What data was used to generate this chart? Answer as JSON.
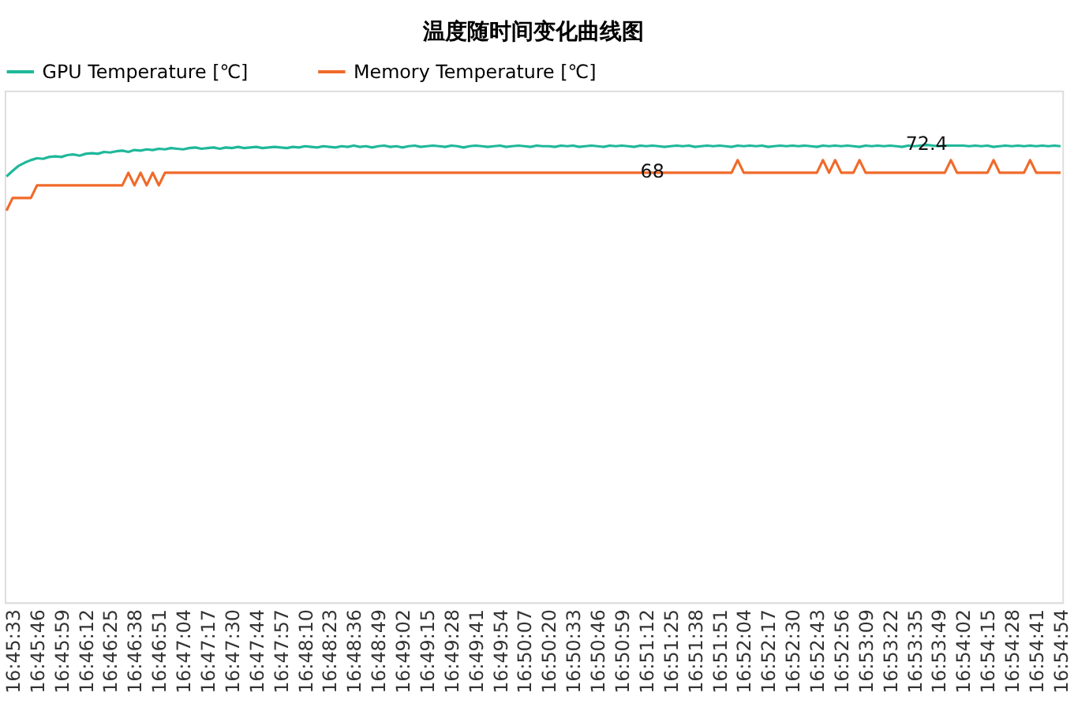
{
  "chart_data": {
    "type": "line",
    "title": "温度随时间变化曲线图",
    "categories": [
      null,
      "16:45:33",
      null,
      null,
      null,
      "16:45:46",
      null,
      null,
      null,
      "16:45:59",
      null,
      null,
      null,
      "16:46:12",
      null,
      null,
      null,
      "16:46:25",
      null,
      null,
      null,
      "16:46:38",
      null,
      null,
      null,
      "16:46:51",
      null,
      null,
      null,
      "16:47:04",
      null,
      null,
      null,
      "16:47:17",
      null,
      null,
      null,
      "16:47:30",
      null,
      null,
      null,
      "16:47:44",
      null,
      null,
      null,
      "16:47:57",
      null,
      null,
      null,
      "16:48:10",
      null,
      null,
      null,
      "16:48:23",
      null,
      null,
      null,
      "16:48:36",
      null,
      null,
      null,
      "16:48:49",
      null,
      null,
      null,
      "16:49:02",
      null,
      null,
      null,
      "16:49:15",
      null,
      null,
      null,
      "16:49:28",
      null,
      null,
      null,
      "16:49:41",
      null,
      null,
      null,
      "16:49:54",
      null,
      null,
      null,
      "16:50:07",
      null,
      null,
      null,
      "16:50:20",
      null,
      null,
      null,
      "16:50:33",
      null,
      null,
      null,
      "16:50:46",
      null,
      null,
      null,
      "16:50:59",
      null,
      null,
      null,
      "16:51:12",
      null,
      null,
      null,
      "16:51:25",
      null,
      null,
      null,
      "16:51:38",
      null,
      null,
      null,
      "16:51:51",
      null,
      null,
      null,
      "16:52:04",
      null,
      null,
      null,
      "16:52:17",
      null,
      null,
      null,
      "16:52:30",
      null,
      null,
      null,
      "16:52:43",
      null,
      null,
      null,
      "16:52:56",
      null,
      null,
      null,
      "16:53:09",
      null,
      null,
      null,
      "16:53:22",
      null,
      null,
      null,
      "16:53:35",
      null,
      null,
      null,
      "16:53:49",
      null,
      null,
      null,
      "16:54:02",
      null,
      null,
      null,
      "16:54:15",
      null,
      null,
      null,
      "16:54:28",
      null,
      null,
      null,
      "16:54:41",
      null,
      null,
      null,
      "16:54:54"
    ],
    "series": [
      {
        "name": "GPU Temperature [℃]",
        "color": "#1fb89a",
        "values": [
          67.4,
          68.3,
          69.1,
          69.6,
          70.0,
          70.3,
          70.2,
          70.5,
          70.6,
          70.5,
          70.8,
          70.9,
          70.7,
          71.0,
          71.1,
          71.0,
          71.3,
          71.2,
          71.4,
          71.5,
          71.3,
          71.6,
          71.5,
          71.7,
          71.6,
          71.8,
          71.7,
          71.9,
          71.8,
          71.7,
          71.9,
          72.0,
          71.8,
          71.9,
          72.0,
          71.8,
          72.0,
          71.9,
          72.1,
          71.9,
          72.0,
          72.1,
          71.9,
          72.0,
          72.1,
          72.0,
          71.9,
          72.1,
          72.0,
          72.2,
          72.1,
          72.0,
          72.2,
          72.1,
          72.0,
          72.2,
          72.1,
          72.3,
          72.1,
          72.2,
          72.0,
          72.2,
          72.3,
          72.1,
          72.2,
          72.0,
          72.2,
          72.3,
          72.1,
          72.2,
          72.3,
          72.2,
          72.1,
          72.3,
          72.2,
          72.0,
          72.2,
          72.3,
          72.2,
          72.1,
          72.2,
          72.3,
          72.1,
          72.2,
          72.3,
          72.2,
          72.1,
          72.3,
          72.2,
          72.2,
          72.1,
          72.3,
          72.2,
          72.3,
          72.1,
          72.2,
          72.3,
          72.2,
          72.1,
          72.3,
          72.2,
          72.3,
          72.2,
          72.1,
          72.3,
          72.2,
          72.3,
          72.2,
          72.1,
          72.2,
          72.3,
          72.2,
          72.3,
          72.1,
          72.2,
          72.3,
          72.2,
          72.3,
          72.2,
          72.1,
          72.3,
          72.2,
          72.3,
          72.2,
          72.3,
          72.1,
          72.2,
          72.3,
          72.2,
          72.3,
          72.2,
          72.3,
          72.2,
          72.1,
          72.3,
          72.2,
          72.3,
          72.2,
          72.3,
          72.2,
          72.1,
          72.3,
          72.2,
          72.3,
          72.2,
          72.3,
          72.2,
          72.1,
          72.3,
          72.2,
          72.3,
          72.4,
          72.3,
          72.2,
          72.3,
          72.3,
          72.3,
          72.3,
          72.2,
          72.3,
          72.2,
          72.3,
          72.1,
          72.2,
          72.3,
          72.2,
          72.3,
          72.2,
          72.3,
          72.2,
          72.3,
          72.2,
          72.3,
          72.2
        ],
        "value_labels": [
          null,
          null,
          null,
          null,
          null,
          null,
          null,
          null,
          null,
          null,
          null,
          null,
          null,
          null,
          null,
          null,
          null,
          null,
          null,
          null,
          null,
          null,
          null,
          null,
          null,
          null,
          null,
          null,
          null,
          null,
          null,
          null,
          null,
          null,
          null,
          null,
          null,
          null,
          null,
          null,
          null,
          null,
          null,
          null,
          null,
          null,
          null,
          null,
          null,
          null,
          null,
          null,
          null,
          null,
          null,
          null,
          null,
          null,
          null,
          null,
          null,
          null,
          null,
          null,
          null,
          null,
          null,
          null,
          null,
          null,
          null,
          null,
          null,
          null,
          null,
          null,
          null,
          null,
          null,
          null,
          null,
          null,
          null,
          null,
          null,
          null,
          null,
          null,
          null,
          null,
          null,
          null,
          null,
          null,
          null,
          null,
          null,
          null,
          null,
          null,
          null,
          null,
          null,
          null,
          null,
          null,
          null,
          null,
          null,
          null,
          null,
          null,
          null,
          null,
          null,
          null,
          null,
          null,
          null,
          null,
          null,
          null,
          null,
          null,
          null,
          null,
          null,
          null,
          null,
          null,
          null,
          null,
          null,
          null,
          null,
          null,
          null,
          null,
          null,
          null,
          null,
          null,
          null,
          null,
          null,
          null,
          null,
          null,
          null,
          null,
          null,
          "72.4",
          null,
          null,
          null,
          null,
          null,
          null,
          null,
          null,
          null,
          null,
          null,
          null,
          null,
          null,
          null,
          null,
          null,
          null,
          null,
          null,
          null,
          null
        ]
      },
      {
        "name": "Memory Temperature [℃]",
        "color": "#f06a2a",
        "values": [
          62,
          64,
          64,
          64,
          64,
          66,
          66,
          66,
          66,
          66,
          66,
          66,
          66,
          66,
          66,
          66,
          66,
          66,
          66,
          66,
          68,
          66,
          68,
          66,
          68,
          66,
          68,
          68,
          68,
          68,
          68,
          68,
          68,
          68,
          68,
          68,
          68,
          68,
          68,
          68,
          68,
          68,
          68,
          68,
          68,
          68,
          68,
          68,
          68,
          68,
          68,
          68,
          68,
          68,
          68,
          68,
          68,
          68,
          68,
          68,
          68,
          68,
          68,
          68,
          68,
          68,
          68,
          68,
          68,
          68,
          68,
          68,
          68,
          68,
          68,
          68,
          68,
          68,
          68,
          68,
          68,
          68,
          68,
          68,
          68,
          68,
          68,
          68,
          68,
          68,
          68,
          68,
          68,
          68,
          68,
          68,
          68,
          68,
          68,
          68,
          68,
          68,
          68,
          68,
          68,
          68,
          68,
          68,
          68,
          68,
          68,
          68,
          68,
          68,
          68,
          68,
          68,
          68,
          68,
          68,
          70,
          68,
          68,
          68,
          68,
          68,
          68,
          68,
          68,
          68,
          68,
          68,
          68,
          68,
          70,
          68,
          70,
          68,
          68,
          68,
          70,
          68,
          68,
          68,
          68,
          68,
          68,
          68,
          68,
          68,
          68,
          68,
          68,
          68,
          68,
          70,
          68,
          68,
          68,
          68,
          68,
          68,
          70,
          68,
          68,
          68,
          68,
          68,
          70,
          68,
          68,
          68,
          68,
          68
        ],
        "value_labels": [
          null,
          null,
          null,
          null,
          null,
          null,
          null,
          null,
          null,
          null,
          null,
          null,
          null,
          null,
          null,
          null,
          null,
          null,
          null,
          null,
          null,
          null,
          null,
          null,
          null,
          null,
          null,
          null,
          null,
          null,
          null,
          null,
          null,
          null,
          null,
          null,
          null,
          null,
          null,
          null,
          null,
          null,
          null,
          null,
          null,
          null,
          null,
          null,
          null,
          null,
          null,
          null,
          null,
          null,
          null,
          null,
          null,
          null,
          null,
          null,
          null,
          null,
          null,
          null,
          null,
          null,
          null,
          null,
          null,
          null,
          null,
          null,
          null,
          null,
          null,
          null,
          null,
          null,
          null,
          null,
          null,
          null,
          null,
          null,
          null,
          null,
          null,
          null,
          null,
          null,
          null,
          null,
          null,
          null,
          null,
          null,
          null,
          null,
          null,
          null,
          null,
          null,
          null,
          null,
          null,
          null,
          "68",
          null,
          null,
          null,
          null,
          null,
          null,
          null,
          null,
          null,
          null,
          null,
          null,
          null,
          null,
          null,
          null,
          null,
          null,
          null,
          null,
          null,
          null,
          null,
          null,
          null,
          null,
          null,
          null,
          null,
          null,
          null,
          null,
          null,
          null,
          null,
          null,
          null,
          null,
          null,
          null,
          null,
          null,
          null,
          null,
          null,
          null,
          null,
          null,
          null,
          null,
          null,
          null,
          null,
          null,
          null,
          null,
          null,
          null,
          null,
          null,
          null,
          null,
          null,
          null,
          null,
          null,
          null
        ]
      }
    ],
    "ylim": [
      0,
      81
    ],
    "tick_labels": "x",
    "legend": "top",
    "grid": false
  }
}
